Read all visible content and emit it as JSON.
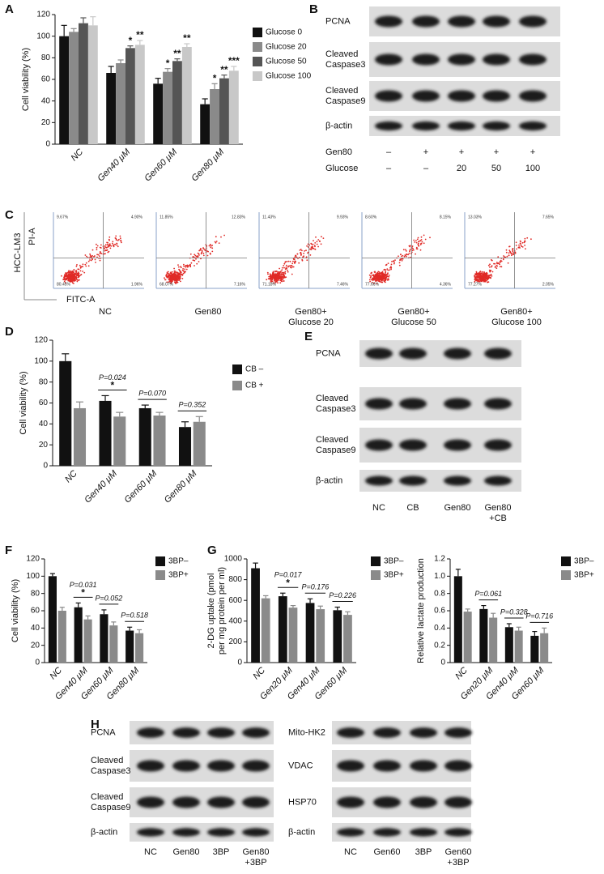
{
  "panels": [
    "A",
    "B",
    "C",
    "D",
    "E",
    "F",
    "G",
    "H"
  ],
  "chart_data": [
    {
      "type": "bar",
      "y_label": "Cell viability (%)",
      "categories": [
        "NC",
        "Gen40 μM",
        "Gen60 μM",
        "Gen80 μM"
      ],
      "series": [
        {
          "name": "Glucose 0",
          "color": "#111111",
          "values": [
            100,
            66,
            56,
            37
          ],
          "errors": [
            10,
            6,
            5,
            5
          ],
          "stars": [
            null,
            null,
            null,
            null
          ]
        },
        {
          "name": "Glucose 20",
          "color": "#8a8a8a",
          "values": [
            104,
            75,
            67,
            51
          ],
          "errors": [
            3,
            3,
            3,
            5
          ],
          "stars": [
            null,
            null,
            "*",
            "*"
          ]
        },
        {
          "name": "Glucose 50",
          "color": "#555555",
          "values": [
            112,
            89,
            77,
            61
          ],
          "errors": [
            5,
            2,
            2,
            3
          ],
          "stars": [
            null,
            "*",
            "**",
            "**"
          ]
        },
        {
          "name": "Glucose 100",
          "color": "#c8c8c8",
          "values": [
            110,
            92,
            90,
            68
          ],
          "errors": [
            8,
            4,
            3,
            4
          ],
          "stars": [
            null,
            "**",
            "**",
            "***"
          ]
        }
      ],
      "ylim": [
        0,
        120
      ],
      "yticks": [
        0,
        20,
        40,
        60,
        80,
        100,
        120
      ]
    },
    {
      "type": "bar",
      "y_label": "Cell viability (%)",
      "categories": [
        "NC",
        "Gen40 μM",
        "Gen60 μM",
        "Gen80 μM"
      ],
      "series": [
        {
          "name": "CB –",
          "color": "#111111",
          "values": [
            100,
            62,
            55,
            37
          ],
          "errors": [
            7,
            5,
            3,
            5
          ]
        },
        {
          "name": "CB +",
          "color": "#8a8a8a",
          "values": [
            55,
            47,
            48,
            42
          ],
          "errors": [
            6,
            4,
            3,
            5
          ]
        }
      ],
      "p_values": [
        null,
        "P=0.024",
        "P=0.070",
        "P=0.352"
      ],
      "p_stars": [
        null,
        "*",
        null,
        null
      ],
      "ylim": [
        0,
        120
      ],
      "yticks": [
        0,
        20,
        40,
        60,
        80,
        100,
        120
      ]
    },
    {
      "type": "bar",
      "y_label": "Cell viability (%)",
      "categories": [
        "NC",
        "Gen40 μM",
        "Gen60 μM",
        "Gen80 μM"
      ],
      "series": [
        {
          "name": "3BP–",
          "color": "#111111",
          "values": [
            100,
            64,
            56,
            37
          ],
          "errors": [
            3,
            5,
            5,
            4
          ]
        },
        {
          "name": "3BP+",
          "color": "#8a8a8a",
          "values": [
            60,
            50,
            43,
            34
          ],
          "errors": [
            4,
            4,
            4,
            4
          ]
        }
      ],
      "p_values": [
        null,
        "P=0.031",
        "P=0.052",
        "P=0.518"
      ],
      "p_stars": [
        null,
        "*",
        null,
        null
      ],
      "ylim": [
        0,
        120
      ],
      "yticks": [
        0,
        20,
        40,
        60,
        80,
        100,
        120
      ]
    },
    {
      "type": "bar",
      "y_label": [
        "2-DG uptake (pmol",
        "per mg protein per ml)"
      ],
      "categories": [
        "NC",
        "Gen20 μM",
        "Gen40 μM",
        "Gen60 μM"
      ],
      "series": [
        {
          "name": "3BP–",
          "color": "#111111",
          "values": [
            910,
            640,
            575,
            505
          ],
          "errors": [
            50,
            30,
            40,
            30
          ]
        },
        {
          "name": "3BP+",
          "color": "#8a8a8a",
          "values": [
            620,
            530,
            515,
            460
          ],
          "errors": [
            25,
            20,
            30,
            30
          ]
        }
      ],
      "p_values": [
        null,
        "P=0.017",
        "P=0.176",
        "P=0.226"
      ],
      "p_stars": [
        null,
        "*",
        null,
        null
      ],
      "ylim": [
        0,
        1000
      ],
      "yticks": [
        0,
        200,
        400,
        600,
        800,
        1000
      ]
    },
    {
      "type": "bar",
      "y_label": "Relative lactate production",
      "categories": [
        "NC",
        "Gen20 μM",
        "Gen40 μM",
        "Gen60 μM"
      ],
      "series": [
        {
          "name": "3BP–",
          "color": "#111111",
          "values": [
            1.0,
            0.62,
            0.41,
            0.31
          ],
          "errors": [
            0.08,
            0.04,
            0.04,
            0.05
          ]
        },
        {
          "name": "3BP+",
          "color": "#8a8a8a",
          "values": [
            0.59,
            0.52,
            0.37,
            0.34
          ],
          "errors": [
            0.03,
            0.05,
            0.04,
            0.06
          ]
        }
      ],
      "p_values": [
        null,
        "P=0.061",
        "P=0.328",
        "P=0.716"
      ],
      "p_stars": [
        null,
        null,
        null,
        null
      ],
      "ylim": [
        0,
        1.2
      ],
      "yticks": [
        0,
        0.2,
        0.4,
        0.6,
        0.8,
        {
          "value": 1,
          "label": "1.0"
        },
        1.2
      ]
    }
  ],
  "blots": [
    {
      "rows": [
        "PCNA",
        [
          "Cleaved",
          "Caspase3"
        ],
        [
          "Cleaved",
          "Caspase9"
        ],
        "β-actin"
      ],
      "conditions": [
        {
          "name": "Gen80",
          "values": [
            "–",
            "+",
            "+",
            "+",
            "+"
          ]
        },
        {
          "name": "Glucose",
          "values": [
            "–",
            "–",
            "20",
            "50",
            "100"
          ]
        }
      ]
    },
    {
      "rows": [
        "PCNA",
        [
          "Cleaved",
          "Caspase3"
        ],
        [
          "Cleaved",
          "Caspase9"
        ],
        "β-actin"
      ],
      "lanes": [
        "NC",
        "CB",
        "Gen80",
        [
          "Gen80",
          "+CB"
        ]
      ]
    },
    {
      "rows": [
        "PCNA",
        [
          "Cleaved",
          "Caspase3"
        ],
        [
          "Cleaved",
          "Caspase9"
        ],
        "β-actin"
      ],
      "lanes": [
        "NC",
        "Gen80",
        "3BP",
        [
          "Gen80",
          "+3BP"
        ]
      ]
    },
    {
      "rows": [
        "Mito-HK2",
        "VDAC",
        "HSP70",
        "β-actin"
      ],
      "lanes": [
        "NC",
        "Gen60",
        "3BP",
        [
          "Gen60",
          "+3BP"
        ]
      ]
    }
  ],
  "flow": {
    "cell_line": "HCC-LM3",
    "y_label": "PI-A",
    "x_label": "FITC-A",
    "plots": [
      {
        "label": [
          "NC"
        ],
        "quadrants": [
          "9.67%",
          "4.90%",
          "80.45%",
          "1.96%"
        ]
      },
      {
        "label": [
          "Gen80"
        ],
        "quadrants": [
          "11.85%",
          "12.83%",
          "68.07%",
          "7.16%"
        ]
      },
      {
        "label": [
          "Gen80+",
          "Glucose 20"
        ],
        "quadrants": [
          "11.43%",
          "9.93%",
          "71.18%",
          "7.46%"
        ]
      },
      {
        "label": [
          "Gen80+",
          "Glucose 50"
        ],
        "quadrants": [
          "8.60%",
          "8.15%",
          "77.66%",
          "4.36%"
        ]
      },
      {
        "label": [
          "Gen80+",
          "Glucose 100"
        ],
        "quadrants": [
          "13.03%",
          "7.65%",
          "77.27%",
          "2.05%"
        ]
      }
    ]
  }
}
